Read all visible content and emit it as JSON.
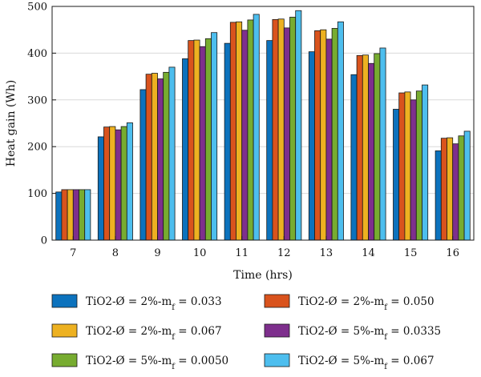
{
  "chart_data": {
    "type": "bar",
    "xlabel": "Time (hrs)",
    "ylabel": "Heat gain (Wh)",
    "ylim": [
      0,
      500
    ],
    "yticks": [
      0,
      100,
      200,
      300,
      400,
      500
    ],
    "categories": [
      "7",
      "8",
      "9",
      "10",
      "11",
      "12",
      "13",
      "14",
      "15",
      "16"
    ],
    "grid": true,
    "legend_position": "bottom",
    "series": [
      {
        "name": "TiO2-Ø = 2%-m",
        "sub": "f",
        "tail": " = 0.033",
        "color": "#0c72bd",
        "values": [
          103,
          221,
          322,
          388,
          421,
          427,
          403,
          354,
          280,
          191
        ]
      },
      {
        "name": "TiO2-Ø = 2%-m",
        "sub": "f",
        "tail": " = 0.050",
        "color": "#d9531d",
        "values": [
          108,
          242,
          355,
          427,
          466,
          472,
          448,
          395,
          315,
          218
        ]
      },
      {
        "name": "TiO2-Ø = 2%-m",
        "sub": "f",
        "tail": " = 0.067",
        "color": "#edb121",
        "values": [
          108,
          243,
          357,
          428,
          467,
          473,
          450,
          396,
          317,
          219
        ]
      },
      {
        "name": "TiO2-Ø = 5%-m",
        "sub": "f",
        "tail": " = 0.0335",
        "color": "#7e2f8d",
        "values": [
          108,
          236,
          345,
          414,
          449,
          454,
          430,
          378,
          300,
          206
        ]
      },
      {
        "name": "TiO2-Ø = 5%-m",
        "sub": "f",
        "tail": " = 0.0050",
        "color": "#77ac30",
        "values": [
          108,
          243,
          359,
          431,
          471,
          477,
          453,
          399,
          319,
          223
        ]
      },
      {
        "name": "TiO2-Ø = 5%-m",
        "sub": "f",
        "tail": " = 0.067",
        "color": "#4dbeee",
        "values": [
          108,
          251,
          370,
          444,
          483,
          491,
          467,
          411,
          332,
          233
        ]
      }
    ]
  }
}
